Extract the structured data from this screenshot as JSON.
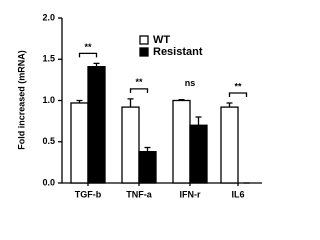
{
  "chart_data": {
    "type": "bar",
    "y_label": "Fold increased (mRNA)",
    "categories": [
      "TGF-b",
      "TNF-a",
      "IFN-r",
      "IL6"
    ],
    "series": [
      {
        "name": "WT",
        "color": "#ffffff",
        "values": [
          0.97,
          0.92,
          1.0,
          0.92
        ],
        "errors": [
          0.03,
          0.1,
          0.01,
          0.05
        ]
      },
      {
        "name": "Resistant",
        "color": "#000000",
        "values": [
          1.41,
          0.38,
          0.7,
          0
        ],
        "errors": [
          0.04,
          0.05,
          0.1,
          0
        ]
      }
    ],
    "annotations": [
      "**",
      "**",
      "ns",
      "**"
    ],
    "ylim": [
      0,
      2
    ],
    "yticks": [
      {
        "value": 0,
        "label": "0.0"
      },
      {
        "value": 0.5,
        "label": "0.5"
      },
      {
        "value": 1,
        "label": "1.0"
      },
      {
        "value": 1.5,
        "label": "1.5"
      },
      {
        "value": 2,
        "label": "2.0"
      }
    ],
    "legend": "top-right"
  }
}
